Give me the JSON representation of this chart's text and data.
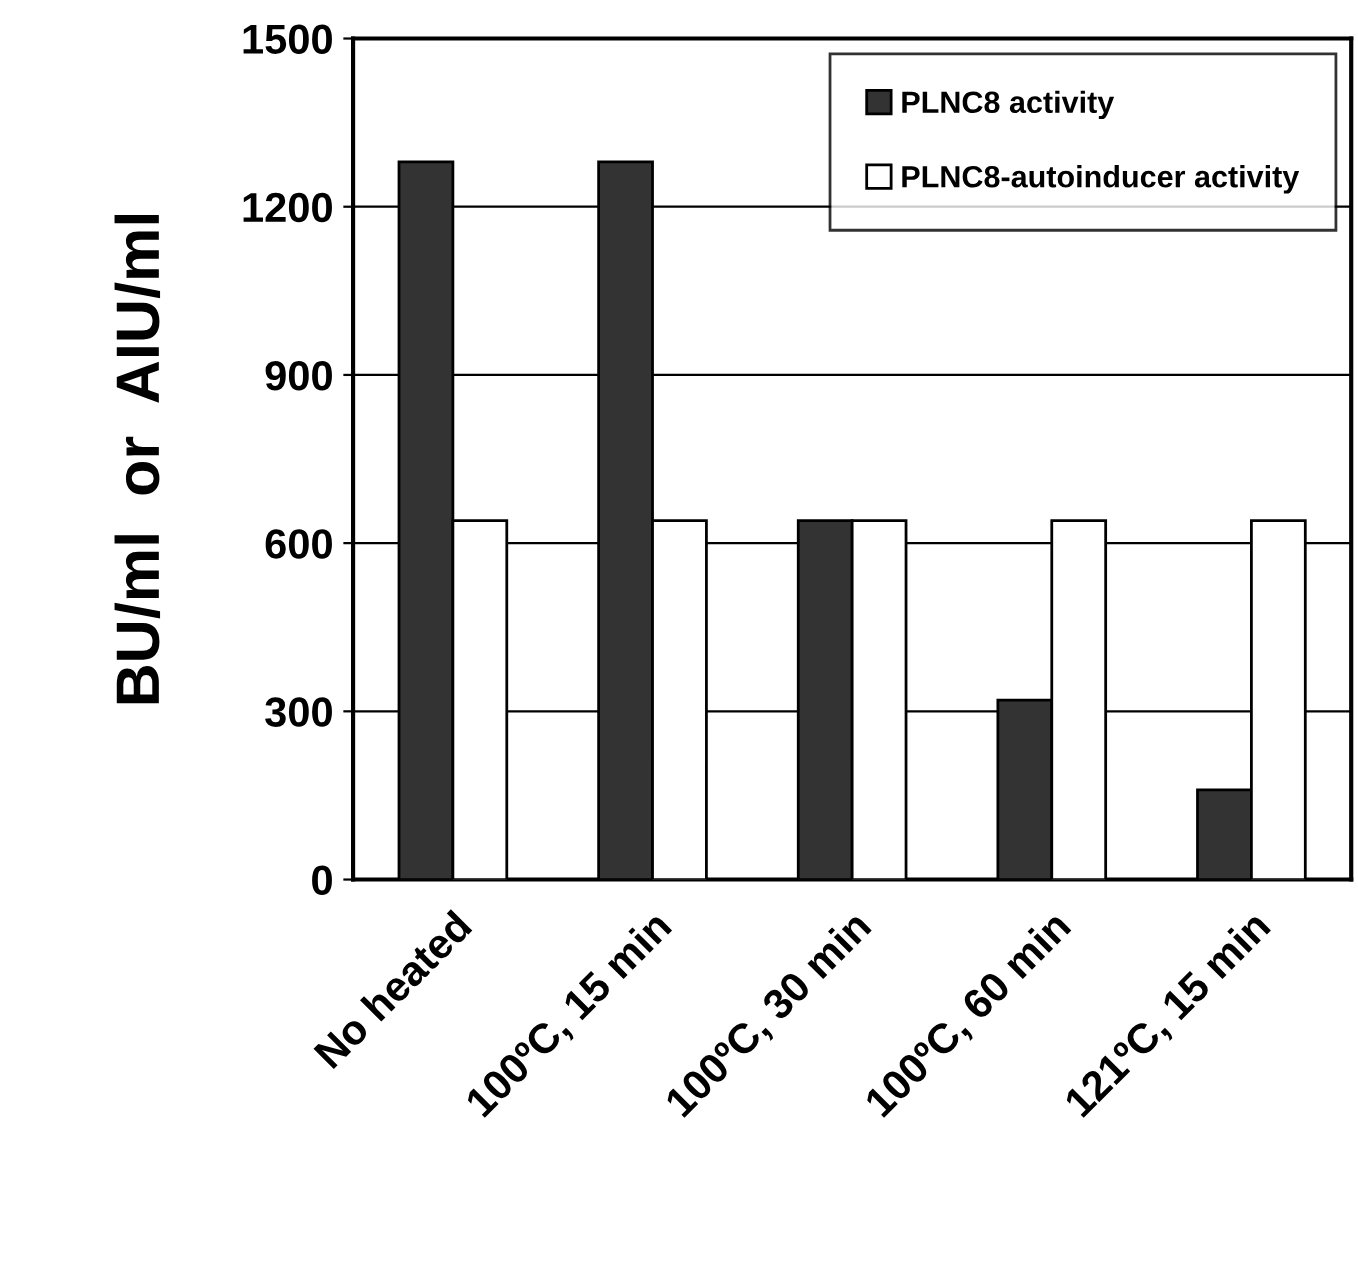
{
  "chart_data": {
    "type": "bar",
    "ylabel": "BU/ml  or  AIU/ml",
    "categories": [
      "No heated",
      "100ºC, 15 min",
      "100ºC, 30 min",
      "100ºC, 60 min",
      "121ºC, 15 min"
    ],
    "series": [
      {
        "name": "PLNC8 activity",
        "color": "#333333",
        "values": [
          1280,
          1280,
          640,
          320,
          160
        ]
      },
      {
        "name": "PLNC8-autoinducer activity",
        "color": "#ffffff",
        "values": [
          640,
          640,
          640,
          640,
          640
        ]
      }
    ],
    "ylim": [
      0,
      1500
    ],
    "yticks": [
      0,
      300,
      600,
      900,
      1200,
      1500
    ],
    "grid": "y",
    "legend": "top right"
  }
}
